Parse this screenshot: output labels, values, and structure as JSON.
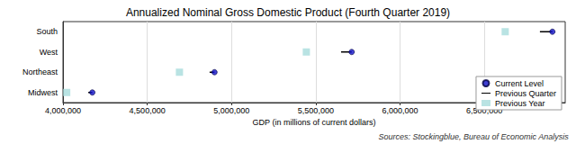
{
  "chart_data": {
    "type": "dot",
    "title": "Annualized Nominal Gross Domestic Product (Fourth Quarter 2019)",
    "orientation": "horizontal",
    "categories": [
      "South",
      "West",
      "Northeast",
      "Midwest"
    ],
    "series": [
      {
        "name": "Current Level",
        "color": "#1010c8",
        "marker": "circle",
        "values": [
          6904000,
          5713000,
          4899000,
          4174000
        ]
      },
      {
        "name": "Previous Quarter",
        "color": "#000000",
        "marker": "line",
        "values": [
          6830000,
          5650000,
          4870000,
          4150000
        ]
      },
      {
        "name": "Previous Year",
        "color": "#a8dcdc",
        "marker": "square",
        "values": [
          6624000,
          5444000,
          4691000,
          4022000
        ]
      }
    ],
    "xlabel": "GDP (in millions of current dollars)",
    "xlim": [
      4000000,
      6980000
    ],
    "xticks": [
      {
        "value": 4000000,
        "label": "4,000,000"
      },
      {
        "value": 4500000,
        "label": "4,500,000"
      },
      {
        "value": 5000000,
        "label": "5,000,000"
      },
      {
        "value": 5500000,
        "label": "5,500,000"
      },
      {
        "value": 6000000,
        "label": "6,000,000"
      },
      {
        "value": 6500000,
        "label": "6,500,000"
      }
    ],
    "grid": true,
    "legend": "lower right",
    "annotations": [
      "Sources: Stockingblue, Bureau of Economic Analysis"
    ]
  }
}
